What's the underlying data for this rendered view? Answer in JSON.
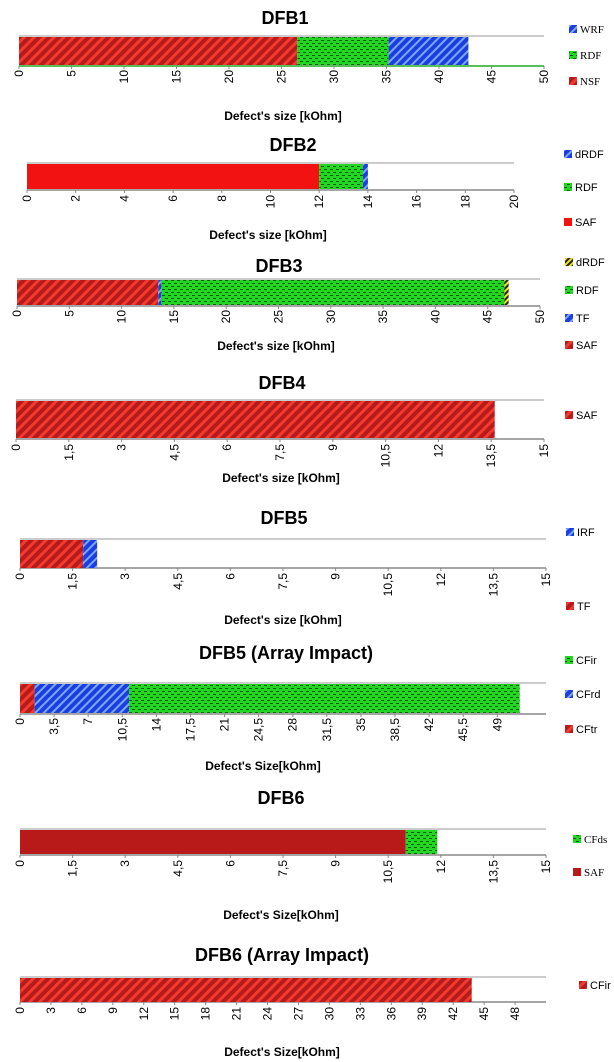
{
  "chart_data": [
    {
      "type": "bar",
      "title": "DFB1",
      "xlabel": "Defect's size [kOhm]",
      "xlim": [
        0,
        50
      ],
      "ticks": [
        "0",
        "5",
        "10",
        "15",
        "20",
        "25",
        "30",
        "35",
        "40",
        "45",
        "50"
      ],
      "segments": [
        {
          "name": "NSF",
          "start": 0,
          "end": 26.5
        },
        {
          "name": "RDF",
          "start": 26.5,
          "end": 35.2
        },
        {
          "name": "WRF",
          "start": 35.2,
          "end": 42.8
        }
      ],
      "legend": [
        "WRF",
        "RDF",
        "NSF"
      ]
    },
    {
      "type": "bar",
      "title": "DFB2",
      "xlabel": "Defect's size [kOhm]",
      "xlim": [
        0,
        20
      ],
      "ticks": [
        "0",
        "2",
        "4",
        "6",
        "8",
        "10",
        "12",
        "14",
        "16",
        "18",
        "20"
      ],
      "segments": [
        {
          "name": "SAF",
          "start": 0,
          "end": 12
        },
        {
          "name": "RDF",
          "start": 12,
          "end": 13.8
        },
        {
          "name": "dRDF",
          "start": 13.8,
          "end": 14
        }
      ],
      "legend": [
        "dRDF",
        "RDF",
        "SAF"
      ]
    },
    {
      "type": "bar",
      "title": "DFB3",
      "xlabel": "Defect's size [kOhm]",
      "xlim": [
        0,
        50
      ],
      "ticks": [
        "0",
        "5",
        "10",
        "15",
        "20",
        "25",
        "30",
        "35",
        "40",
        "45",
        "50"
      ],
      "segments": [
        {
          "name": "SAF",
          "start": 0,
          "end": 13.5
        },
        {
          "name": "TF",
          "start": 13.5,
          "end": 13.8
        },
        {
          "name": "RDF",
          "start": 13.8,
          "end": 46.6
        },
        {
          "name": "dRDF",
          "start": 46.6,
          "end": 47
        }
      ],
      "legend": [
        "dRDF",
        "RDF",
        "TF",
        "SAF"
      ]
    },
    {
      "type": "bar",
      "title": "DFB4",
      "xlabel": "Defect's size [kOhm]",
      "xlim": [
        0,
        15
      ],
      "ticks": [
        "0",
        "1,5",
        "3",
        "4,5",
        "6",
        "7,5",
        "9",
        "10,5",
        "12",
        "13,5",
        "15"
      ],
      "segments": [
        {
          "name": "SAF",
          "start": 0,
          "end": 13.6
        }
      ],
      "legend": [
        "SAF"
      ]
    },
    {
      "type": "bar",
      "title": "DFB5",
      "xlabel": "Defect's size [kOhm]",
      "xlim": [
        0,
        15
      ],
      "ticks": [
        "0",
        "1,5",
        "3",
        "4,5",
        "6",
        "7,5",
        "9",
        "10,5",
        "12",
        "13,5",
        "15"
      ],
      "segments": [
        {
          "name": "TF",
          "start": 0,
          "end": 1.8
        },
        {
          "name": "IRF",
          "start": 1.8,
          "end": 2.2
        }
      ],
      "legend": [
        "IRF",
        "TF"
      ]
    },
    {
      "type": "bar",
      "title": "DFB5 (Array Impact)",
      "xlabel": "Defect's Size[kOhm]",
      "xlim": [
        0,
        54
      ],
      "ticks": [
        "0",
        "3,5",
        "7",
        "10,5",
        "14",
        "17,5",
        "21",
        "24,5",
        "28",
        "31,5",
        "35",
        "38,5",
        "42",
        "45,5",
        "49"
      ],
      "segments": [
        {
          "name": "CFtr",
          "start": 0,
          "end": 1.5
        },
        {
          "name": "CFrd",
          "start": 1.5,
          "end": 11.2
        },
        {
          "name": "CFir",
          "start": 11.2,
          "end": 51.3
        }
      ],
      "legend": [
        "CFir",
        "CFrd",
        "CFtr"
      ]
    },
    {
      "type": "bar",
      "title": "DFB6",
      "xlabel": "Defect's Size[kOhm]",
      "xlim": [
        0,
        15
      ],
      "ticks": [
        "0",
        "1,5",
        "3",
        "4,5",
        "6",
        "7,5",
        "9",
        "10,5",
        "12",
        "13,5",
        "15"
      ],
      "segments": [
        {
          "name": "SAF",
          "start": 0,
          "end": 11
        },
        {
          "name": "CFds",
          "start": 11,
          "end": 11.9
        }
      ],
      "legend": [
        "CFds",
        "SAF"
      ]
    },
    {
      "type": "bar",
      "title": "DFB6 (Array Impact)",
      "xlabel": "Defect's Size[kOhm]",
      "xlim": [
        0,
        51
      ],
      "ticks": [
        "0",
        "3",
        "6",
        "9",
        "12",
        "15",
        "18",
        "21",
        "24",
        "27",
        "30",
        "33",
        "36",
        "39",
        "42",
        "45",
        "48"
      ],
      "segments": [
        {
          "name": "CFir",
          "start": 0,
          "end": 43.8
        }
      ],
      "legend": [
        "CFir"
      ]
    }
  ],
  "colors": {
    "red": "#e8231f",
    "dark_red": "#b71a1a",
    "green": "#1fd11f",
    "blue": "#1a45e8",
    "yellow": "#f2e21a"
  }
}
